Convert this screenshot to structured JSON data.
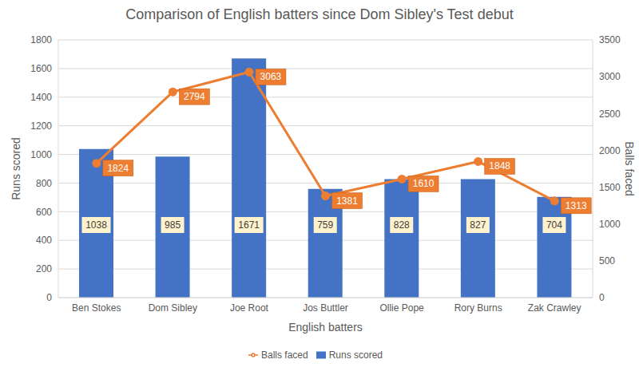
{
  "chart_data": {
    "type": "bar",
    "title": "Comparison of English batters since Dom Sibley's Test debut",
    "xlabel": "English batters",
    "ylabel": "Runs scored",
    "y2label": "Balls faced",
    "categories": [
      "Ben Stokes",
      "Dom Sibley",
      "Joe Root",
      "Jos Buttler",
      "Ollie Pope",
      "Rory Burns",
      "Zak Crawley"
    ],
    "series": [
      {
        "name": "Runs scored",
        "type": "bar",
        "color": "#4472c4",
        "values": [
          1038,
          985,
          1671,
          759,
          828,
          827,
          704
        ]
      },
      {
        "name": "Balls faced",
        "type": "line",
        "color": "#ed7d31",
        "axis": "y2",
        "marker": "circle",
        "values": [
          1824,
          2794,
          3063,
          1381,
          1610,
          1848,
          1313
        ]
      }
    ],
    "ylim": [
      0,
      1800
    ],
    "yticks": [
      0,
      200,
      400,
      600,
      800,
      1000,
      1200,
      1400,
      1600,
      1800
    ],
    "y2lim": [
      0,
      3500
    ],
    "y2ticks": [
      0,
      500,
      1000,
      1500,
      2000,
      2500,
      3000,
      3500
    ],
    "grid": true,
    "legend": "bottom",
    "data_labels": true
  }
}
